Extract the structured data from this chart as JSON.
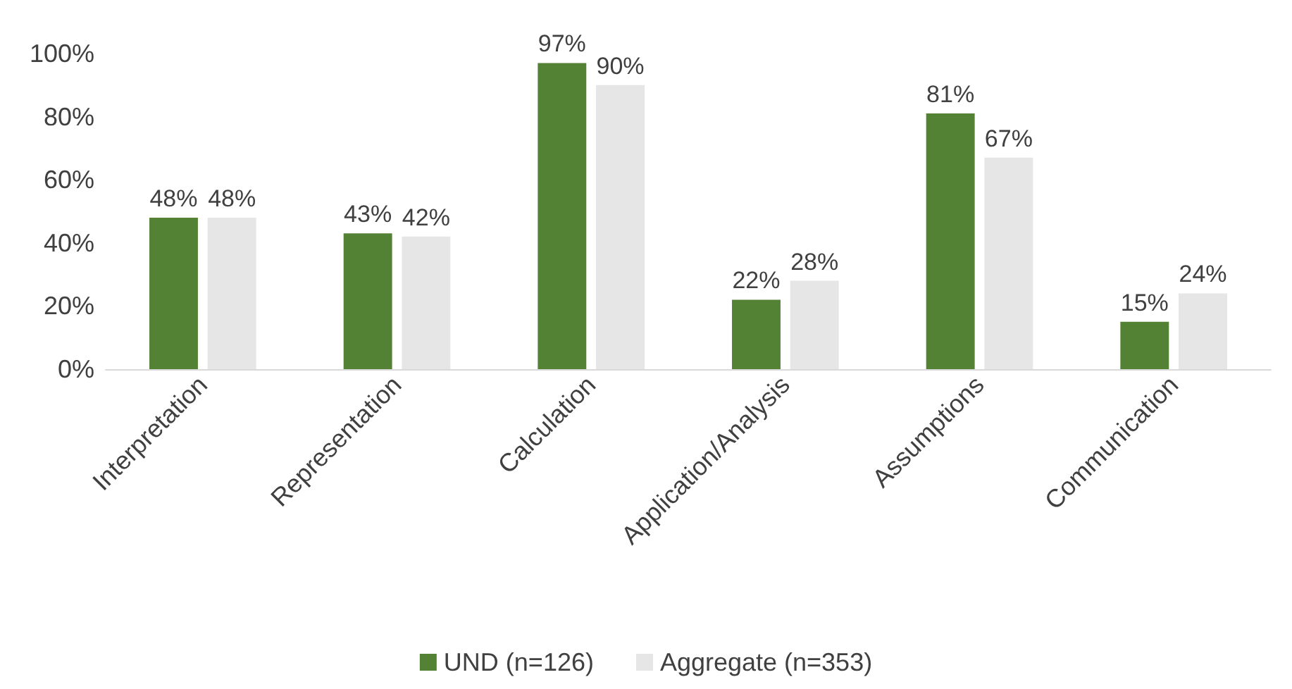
{
  "chart_data": {
    "type": "bar",
    "categories": [
      "Interpretation",
      "Representation",
      "Calculation",
      "Application/Analysis",
      "Assumptions",
      "Communication"
    ],
    "series": [
      {
        "name": "UND (n=126)",
        "color": "#548235",
        "values": [
          48,
          43,
          97,
          22,
          81,
          15
        ],
        "value_labels": [
          "48%",
          "43%",
          "97%",
          "22%",
          "81%",
          "15%"
        ]
      },
      {
        "name": "Aggregate (n=353)",
        "color": "#e7e6e6",
        "values": [
          48,
          42,
          90,
          28,
          67,
          24
        ],
        "value_labels": [
          "48%",
          "42%",
          "90%",
          "28%",
          "67%",
          "24%"
        ]
      }
    ],
    "ylim": [
      0,
      100
    ],
    "yticks": [
      {
        "value": 0,
        "label": "0%"
      },
      {
        "value": 20,
        "label": "20%"
      },
      {
        "value": 40,
        "label": "40%"
      },
      {
        "value": 60,
        "label": "60%"
      },
      {
        "value": 80,
        "label": "80%"
      },
      {
        "value": 100,
        "label": "100%"
      }
    ],
    "legend": "bottom"
  }
}
